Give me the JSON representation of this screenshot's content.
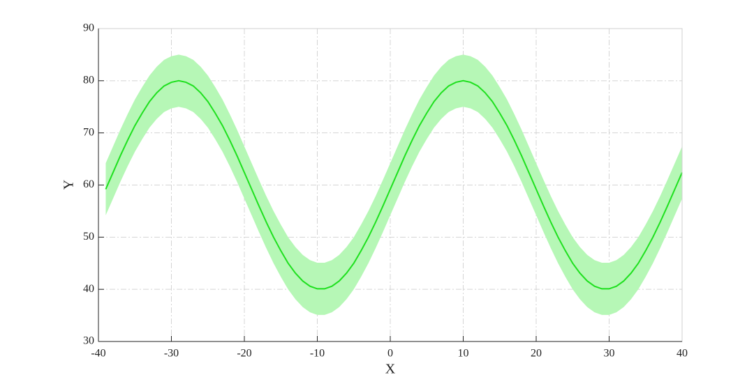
{
  "chart_data": {
    "type": "line",
    "xlabel": "X",
    "ylabel": "Y",
    "x": [
      -39,
      -38,
      -37,
      -36,
      -35,
      -34,
      -33,
      -32,
      -31,
      -30,
      -29,
      -28,
      -27,
      -26,
      -25,
      -24,
      -23,
      -22,
      -21,
      -20,
      -19,
      -18,
      -17,
      -16,
      -15,
      -14,
      -13,
      -12,
      -11,
      -10,
      -9,
      -8,
      -7,
      -6,
      -5,
      -4,
      -3,
      -2,
      -1,
      0,
      1,
      2,
      3,
      4,
      5,
      6,
      7,
      8,
      9,
      10,
      11,
      12,
      13,
      14,
      15,
      16,
      17,
      18,
      19,
      20,
      21,
      22,
      23,
      24,
      25,
      26,
      27,
      28,
      29,
      30,
      31,
      32,
      33,
      34,
      35,
      36,
      37,
      38,
      39,
      40
    ],
    "series": [
      {
        "color": "#1ee01e",
        "band_color": "#b6f7b6",
        "values": [
          59.2,
          62.4,
          65.6,
          68.6,
          71.4,
          73.8,
          76.0,
          77.7,
          79.0,
          79.7,
          80.0,
          79.7,
          79.0,
          77.7,
          76.0,
          73.8,
          71.4,
          68.6,
          65.6,
          62.4,
          59.2,
          56.0,
          52.9,
          50.0,
          47.4,
          45.0,
          43.1,
          41.6,
          40.6,
          40.1,
          40.1,
          40.6,
          41.6,
          43.1,
          45.0,
          47.4,
          50.0,
          52.9,
          56.0,
          59.2,
          62.4,
          65.6,
          68.6,
          71.4,
          73.8,
          76.0,
          77.7,
          79.0,
          79.7,
          80.0,
          79.7,
          79.0,
          77.7,
          76.0,
          73.8,
          71.4,
          68.6,
          65.6,
          62.4,
          59.2,
          56.0,
          52.9,
          50.0,
          47.4,
          45.0,
          43.1,
          41.6,
          40.6,
          40.1,
          40.1,
          40.6,
          41.6,
          43.1,
          45.0,
          47.4,
          50.0,
          52.9,
          56.0,
          59.2,
          62.4
        ],
        "lower": [
          54.2,
          57.4,
          60.6,
          63.6,
          66.4,
          68.8,
          71.0,
          72.7,
          74.0,
          74.7,
          75.0,
          74.7,
          74.0,
          72.7,
          71.0,
          68.8,
          66.4,
          63.6,
          60.6,
          57.4,
          54.2,
          51.0,
          47.9,
          45.0,
          42.4,
          40.0,
          38.1,
          36.6,
          35.6,
          35.1,
          35.1,
          35.6,
          36.6,
          38.1,
          40.0,
          42.4,
          45.0,
          47.9,
          51.0,
          54.2,
          57.4,
          60.6,
          63.6,
          66.4,
          68.8,
          71.0,
          72.7,
          74.0,
          74.7,
          75.0,
          74.7,
          74.0,
          72.7,
          71.0,
          68.8,
          66.4,
          63.6,
          60.6,
          57.4,
          54.2,
          51.0,
          47.9,
          45.0,
          42.4,
          40.0,
          38.1,
          36.6,
          35.6,
          35.1,
          35.1,
          35.6,
          36.6,
          38.1,
          40.0,
          42.4,
          45.0,
          47.9,
          51.0,
          54.2,
          57.4
        ],
        "upper": [
          64.2,
          67.4,
          70.6,
          73.6,
          76.4,
          78.8,
          81.0,
          82.7,
          84.0,
          84.7,
          85.0,
          84.7,
          84.0,
          82.7,
          81.0,
          78.8,
          76.4,
          73.6,
          70.6,
          67.4,
          64.2,
          61.0,
          57.9,
          55.0,
          52.4,
          50.0,
          48.1,
          46.6,
          45.6,
          45.1,
          45.1,
          45.6,
          46.6,
          48.1,
          50.0,
          52.4,
          55.0,
          57.9,
          61.0,
          64.2,
          67.4,
          70.6,
          73.6,
          76.4,
          78.8,
          81.0,
          82.7,
          84.0,
          84.7,
          85.0,
          84.7,
          84.0,
          82.7,
          81.0,
          78.8,
          76.4,
          73.6,
          70.6,
          67.4,
          64.2,
          61.0,
          57.9,
          55.0,
          52.4,
          50.0,
          48.1,
          46.6,
          45.6,
          45.1,
          45.1,
          45.6,
          46.6,
          48.1,
          50.0,
          52.4,
          55.0,
          57.9,
          61.0,
          64.2,
          67.4
        ]
      }
    ],
    "xlim": [
      -40,
      40
    ],
    "xticks": [
      -40,
      -30,
      -20,
      -10,
      0,
      10,
      20,
      30,
      40
    ],
    "ylim": [
      30,
      90
    ],
    "yticks": [
      30,
      40,
      50,
      60,
      70,
      80,
      90
    ],
    "grid": true
  }
}
